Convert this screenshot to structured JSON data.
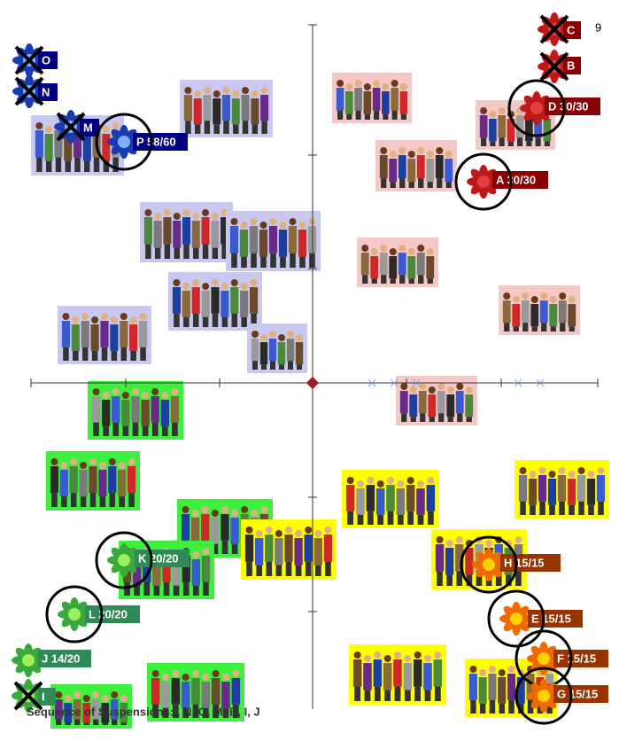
{
  "corner_number": "9",
  "markers": [
    {
      "label": "C"
    },
    {
      "label": "B"
    },
    {
      "label": "D 30/30"
    },
    {
      "label": "A 30/30"
    },
    {
      "label": "O"
    },
    {
      "label": "N"
    },
    {
      "label": "M"
    },
    {
      "label": "P 58/60"
    },
    {
      "label": "K 20/20"
    },
    {
      "label": "L 20/20"
    },
    {
      "label": "J 14/20"
    },
    {
      "label": "I"
    },
    {
      "label": "H 15/15"
    },
    {
      "label": "E 15/15"
    },
    {
      "label": "F 15/15"
    },
    {
      "label": "G 15/15"
    }
  ],
  "footer": "Sequence of Suspensions: , N, O, M, B, I, J"
}
